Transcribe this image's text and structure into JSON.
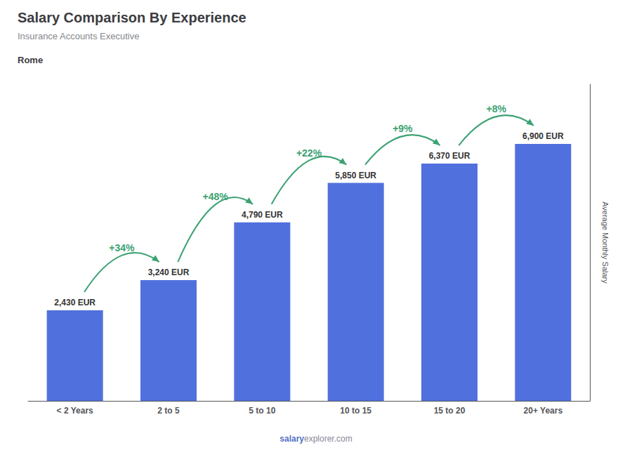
{
  "chart_data": {
    "type": "bar",
    "title": "Salary Comparison By Experience",
    "subtitle": "Insurance Accounts Executive",
    "city": "Rome",
    "ylabel": "Average Monthly Salary",
    "categories": [
      "< 2 Years",
      "2 to 5",
      "5 to 10",
      "10 to 15",
      "15 to 20",
      "20+ Years"
    ],
    "values": [
      2430,
      3240,
      4790,
      5850,
      6370,
      6900
    ],
    "value_labels": [
      "2,430 EUR",
      "3,240 EUR",
      "4,790 EUR",
      "5,850 EUR",
      "6,370 EUR",
      "6,900 EUR"
    ],
    "data_labels": true,
    "annotations": [
      "+34%",
      "+48%",
      "+22%",
      "+9%",
      "+8%"
    ],
    "footer": [
      "salary",
      "explorer.com"
    ],
    "ylim": [
      0,
      8500
    ],
    "tick_labels": "x",
    "grid": false
  }
}
